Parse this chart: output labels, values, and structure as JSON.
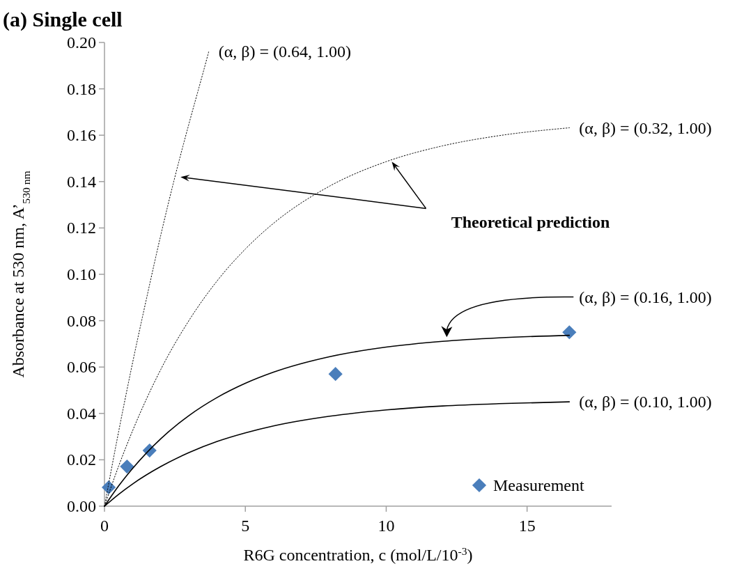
{
  "chart_data": {
    "type": "line",
    "title": "(a) Single cell",
    "xlabel": "R6G concentration, c (mol/L/10$^{-3}$)",
    "ylabel": "Absorbance at 530 nm, A’$_{530 nm}$",
    "xlim": [
      0,
      18
    ],
    "xticks": [
      0,
      5,
      10,
      15
    ],
    "ylim": [
      0,
      0.2
    ],
    "yticks": [
      {
        "value": 0,
        "label": "0.00"
      },
      {
        "value": 0.02,
        "label": "0.02"
      },
      {
        "value": 0.04,
        "label": "0.04"
      },
      {
        "value": 0.06,
        "label": "0.06"
      },
      {
        "value": 0.08,
        "label": "0.08"
      },
      {
        "value": 0.1,
        "label": "0.10"
      },
      {
        "value": 0.12,
        "label": "0.12"
      },
      {
        "value": 0.14,
        "label": "0.14"
      },
      {
        "value": 0.16,
        "label": "0.16"
      },
      {
        "value": 0.18,
        "label": "0.18"
      },
      {
        "value": 0.2,
        "label": "0.20"
      }
    ],
    "grid": false,
    "legend": "bottom right",
    "annotations": [
      "Theoretical prediction"
    ],
    "series": [
      {
        "name": "(α, β) = (0.64, 1.00)",
        "line_style": "dotted",
        "marker": "none",
        "color": "#000000",
        "x": [
          0,
          0.5,
          1,
          1.5,
          2,
          2.5,
          3,
          3.5,
          3.7
        ],
        "values": [
          0,
          0.032,
          0.062,
          0.09,
          0.117,
          0.142,
          0.165,
          0.187,
          0.196
        ]
      },
      {
        "name": "(α, β) = (0.32, 1.00)",
        "line_style": "dotted",
        "marker": "none",
        "color": "#000000",
        "x": [
          0,
          0.5,
          1,
          2,
          3,
          4,
          5,
          6,
          8,
          10,
          12,
          14,
          16.5
        ],
        "values": [
          0,
          0.0172,
          0.0326,
          0.059,
          0.0801,
          0.0972,
          0.1109,
          0.122,
          0.1381,
          0.1486,
          0.1554,
          0.1598,
          0.1632
        ]
      },
      {
        "name": "(α, β) = (0.16, 1.00)",
        "line_style": "solid",
        "marker": "none",
        "color": "#000000",
        "x": [
          0,
          0.5,
          1,
          2,
          3,
          4,
          5,
          6,
          8,
          10,
          12,
          14,
          16.5
        ],
        "values": [
          0,
          0.0087,
          0.0163,
          0.0291,
          0.0391,
          0.0469,
          0.053,
          0.0578,
          0.0645,
          0.0686,
          0.0711,
          0.0726,
          0.0737
        ]
      },
      {
        "name": "(α, β) = (0.10, 1.00)",
        "line_style": "solid",
        "marker": "none",
        "color": "#000000",
        "x": [
          0,
          0.5,
          1,
          2,
          3,
          4,
          5,
          6,
          8,
          10,
          12,
          14,
          16.5
        ],
        "values": [
          0,
          0.0051,
          0.0096,
          0.0171,
          0.0231,
          0.0279,
          0.0316,
          0.0346,
          0.0388,
          0.0415,
          0.0432,
          0.0442,
          0.045
        ]
      },
      {
        "name": "Measurement",
        "type": "scatter",
        "marker": "diamond",
        "color": "#4a7ebb",
        "x": [
          0.15,
          0.8,
          1.6,
          8.2,
          16.5
        ],
        "values": [
          0.0081,
          0.0171,
          0.024,
          0.057,
          0.075
        ]
      }
    ]
  }
}
